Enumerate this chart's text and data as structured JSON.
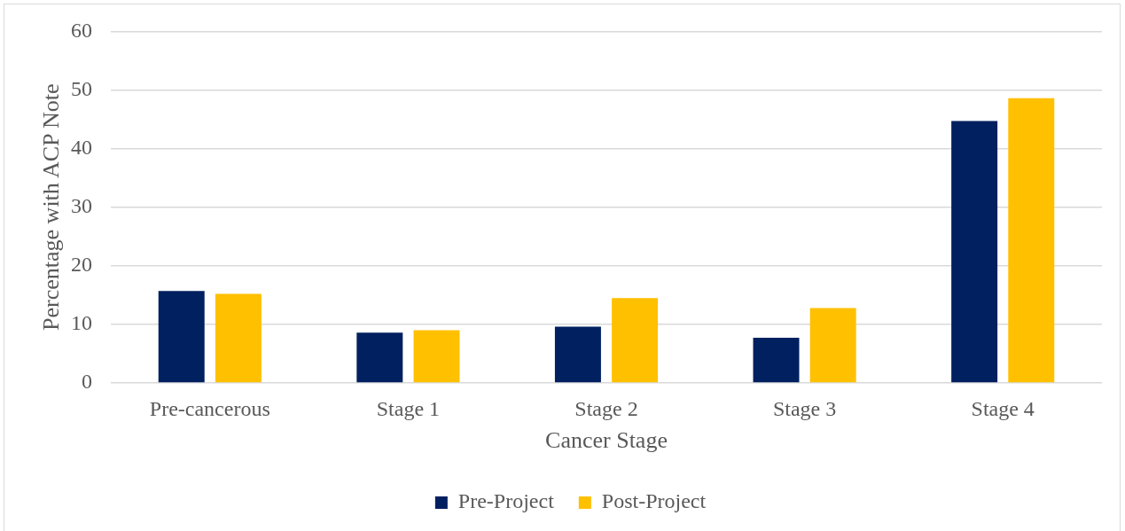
{
  "chart_data": {
    "type": "bar",
    "xlabel": "Cancer Stage",
    "ylabel": "Percentage with ACP Note",
    "categories": [
      "Pre-cancerous",
      "Stage 1",
      "Stage 2",
      "Stage 3",
      "Stage 4"
    ],
    "series": [
      {
        "name": "Pre-Project",
        "color": "#002060",
        "values": [
          15.7,
          8.6,
          9.6,
          7.7,
          44.7
        ]
      },
      {
        "name": "Post-Project",
        "color": "#ffc000",
        "values": [
          15.2,
          9.0,
          14.5,
          12.8,
          48.6
        ]
      }
    ],
    "ylim": [
      0,
      60
    ],
    "yticks": [
      0,
      10,
      20,
      30,
      40,
      50,
      60
    ],
    "grid": "y",
    "legend": "bottom"
  }
}
